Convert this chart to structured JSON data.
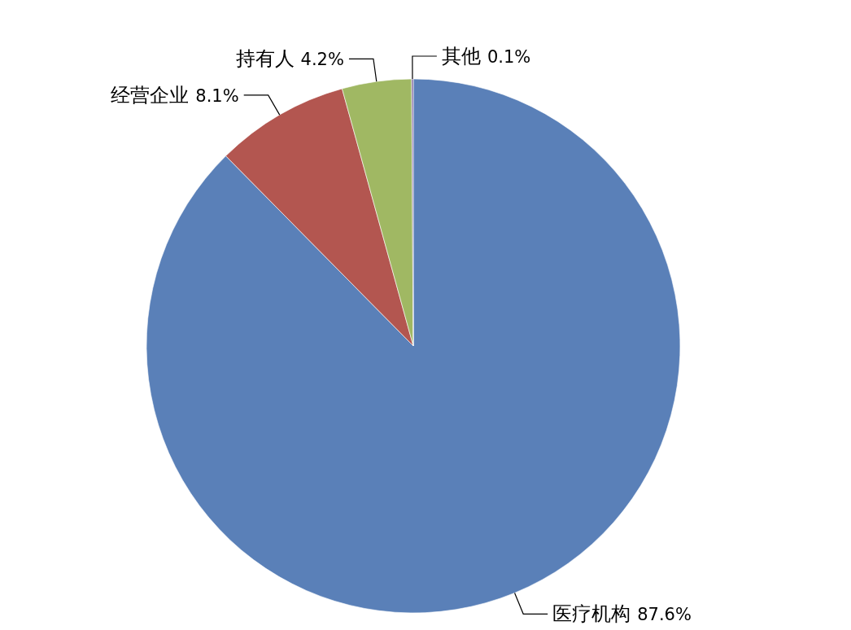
{
  "chart_data": {
    "type": "pie",
    "categories": [
      "医疗机构",
      "经营企业",
      "持有人",
      "其他"
    ],
    "values": [
      87.6,
      8.1,
      4.2,
      0.1
    ],
    "colors": [
      "#5a80b8",
      "#b35650",
      "#a0b863",
      "#7f64a0"
    ],
    "value_labels": [
      "87.6%",
      "8.1%",
      "4.2%",
      "0.1%"
    ],
    "legend": false
  }
}
